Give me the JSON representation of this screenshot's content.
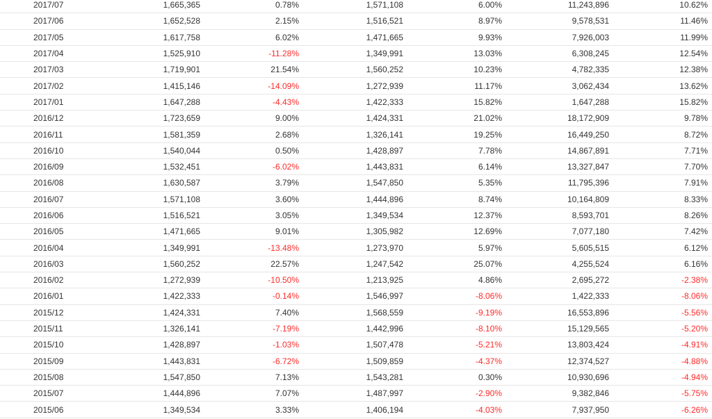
{
  "colors": {
    "negative": "#ff2a2a",
    "text": "#333333",
    "row_border": "#e6e6e6"
  },
  "rows": [
    [
      "2017/07",
      "1,665,365",
      "0.78%",
      "1,571,108",
      "6.00%",
      "11,243,896",
      "10.62%"
    ],
    [
      "2017/06",
      "1,652,528",
      "2.15%",
      "1,516,521",
      "8.97%",
      "9,578,531",
      "11.46%"
    ],
    [
      "2017/05",
      "1,617,758",
      "6.02%",
      "1,471,665",
      "9.93%",
      "7,926,003",
      "11.99%"
    ],
    [
      "2017/04",
      "1,525,910",
      "-11.28%",
      "1,349,991",
      "13.03%",
      "6,308,245",
      "12.54%"
    ],
    [
      "2017/03",
      "1,719,901",
      "21.54%",
      "1,560,252",
      "10.23%",
      "4,782,335",
      "12.38%"
    ],
    [
      "2017/02",
      "1,415,146",
      "-14.09%",
      "1,272,939",
      "11.17%",
      "3,062,434",
      "13.62%"
    ],
    [
      "2017/01",
      "1,647,288",
      "-4.43%",
      "1,422,333",
      "15.82%",
      "1,647,288",
      "15.82%"
    ],
    [
      "2016/12",
      "1,723,659",
      "9.00%",
      "1,424,331",
      "21.02%",
      "18,172,909",
      "9.78%"
    ],
    [
      "2016/11",
      "1,581,359",
      "2.68%",
      "1,326,141",
      "19.25%",
      "16,449,250",
      "8.72%"
    ],
    [
      "2016/10",
      "1,540,044",
      "0.50%",
      "1,428,897",
      "7.78%",
      "14,867,891",
      "7.71%"
    ],
    [
      "2016/09",
      "1,532,451",
      "-6.02%",
      "1,443,831",
      "6.14%",
      "13,327,847",
      "7.70%"
    ],
    [
      "2016/08",
      "1,630,587",
      "3.79%",
      "1,547,850",
      "5.35%",
      "11,795,396",
      "7.91%"
    ],
    [
      "2016/07",
      "1,571,108",
      "3.60%",
      "1,444,896",
      "8.74%",
      "10,164,809",
      "8.33%"
    ],
    [
      "2016/06",
      "1,516,521",
      "3.05%",
      "1,349,534",
      "12.37%",
      "8,593,701",
      "8.26%"
    ],
    [
      "2016/05",
      "1,471,665",
      "9.01%",
      "1,305,982",
      "12.69%",
      "7,077,180",
      "7.42%"
    ],
    [
      "2016/04",
      "1,349,991",
      "-13.48%",
      "1,273,970",
      "5.97%",
      "5,605,515",
      "6.12%"
    ],
    [
      "2016/03",
      "1,560,252",
      "22.57%",
      "1,247,542",
      "25.07%",
      "4,255,524",
      "6.16%"
    ],
    [
      "2016/02",
      "1,272,939",
      "-10.50%",
      "1,213,925",
      "4.86%",
      "2,695,272",
      "-2.38%"
    ],
    [
      "2016/01",
      "1,422,333",
      "-0.14%",
      "1,546,997",
      "-8.06%",
      "1,422,333",
      "-8.06%"
    ],
    [
      "2015/12",
      "1,424,331",
      "7.40%",
      "1,568,559",
      "-9.19%",
      "16,553,896",
      "-5.56%"
    ],
    [
      "2015/11",
      "1,326,141",
      "-7.19%",
      "1,442,996",
      "-8.10%",
      "15,129,565",
      "-5.20%"
    ],
    [
      "2015/10",
      "1,428,897",
      "-1.03%",
      "1,507,478",
      "-5.21%",
      "13,803,424",
      "-4.91%"
    ],
    [
      "2015/09",
      "1,443,831",
      "-6.72%",
      "1,509,859",
      "-4.37%",
      "12,374,527",
      "-4.88%"
    ],
    [
      "2015/08",
      "1,547,850",
      "7.13%",
      "1,543,281",
      "0.30%",
      "10,930,696",
      "-4.94%"
    ],
    [
      "2015/07",
      "1,444,896",
      "7.07%",
      "1,487,997",
      "-2.90%",
      "9,382,846",
      "-5.75%"
    ],
    [
      "2015/06",
      "1,349,534",
      "3.33%",
      "1,406,194",
      "-4.03%",
      "7,937,950",
      "-6.26%"
    ]
  ]
}
